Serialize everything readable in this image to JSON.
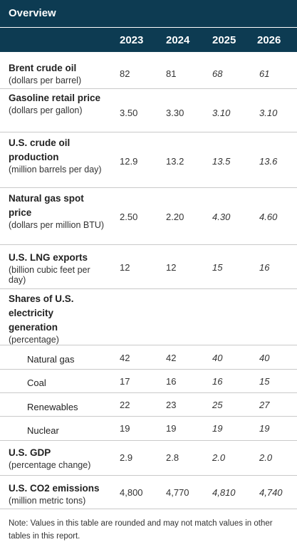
{
  "title": "Overview",
  "years": [
    "2023",
    "2024",
    "2025",
    "2026"
  ],
  "rows": [
    {
      "label": "Brent crude oil",
      "unit": "(dollars per barrel)",
      "values": [
        "82",
        "81",
        "68",
        "61"
      ]
    },
    {
      "label": "Gasoline retail price",
      "unit": "(dollars per gallon)",
      "values": [
        "3.50",
        "3.30",
        "3.10",
        "3.10"
      ]
    },
    {
      "label": "U.S. crude oil production",
      "unit": "(million barrels per day)",
      "values": [
        "12.9",
        "13.2",
        "13.5",
        "13.6"
      ]
    },
    {
      "label": "Natural gas spot price",
      "unit": "(dollars per million BTU)",
      "values": [
        "2.50",
        "2.20",
        "4.30",
        "4.60"
      ]
    },
    {
      "label": "U.S. LNG exports",
      "unit": "(billion cubic feet per day)",
      "values": [
        "12",
        "12",
        "15",
        "16"
      ]
    },
    {
      "label": "Shares of U.S. electricity generation",
      "unit": "(percentage)",
      "values": []
    },
    {
      "label": "Natural gas",
      "values": [
        "42",
        "42",
        "40",
        "40"
      ]
    },
    {
      "label": "Coal",
      "values": [
        "17",
        "16",
        "16",
        "15"
      ]
    },
    {
      "label": "Renewables",
      "values": [
        "22",
        "23",
        "25",
        "27"
      ]
    },
    {
      "label": "Nuclear",
      "values": [
        "19",
        "19",
        "19",
        "19"
      ]
    },
    {
      "label": "U.S. GDP",
      "unit": "(percentage change)",
      "values": [
        "2.9",
        "2.8",
        "2.0",
        "2.0"
      ]
    },
    {
      "label": "U.S. CO2 emissions",
      "unit": "(million metric tons)",
      "values": [
        "4,800",
        "4,770",
        "4,810",
        "4,740"
      ]
    }
  ],
  "note": "Note: Values in this table are rounded and may not match values in other tables in this report.",
  "colors": {
    "header_bg": "#0d3b52",
    "header_text": "#ffffff",
    "rule": "#c9c9c9"
  }
}
